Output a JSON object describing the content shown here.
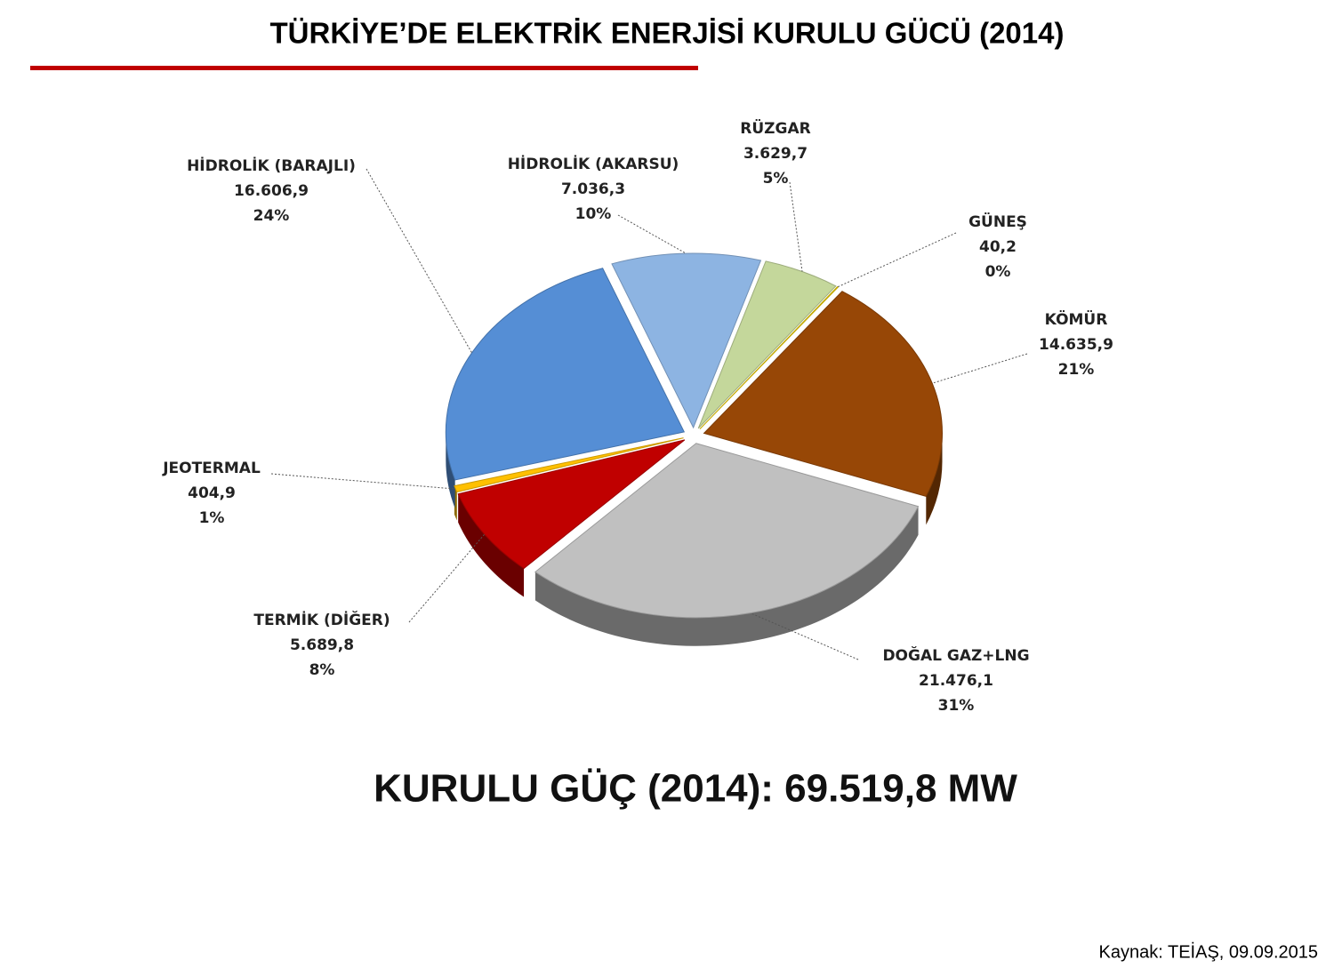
{
  "chart_data": {
    "type": "pie",
    "title": "TÜRKİYE’DE ELEKTRİK ENERJİSİ KURULU GÜCÜ (2014)",
    "categories": [
      "HİDROLİK (AKARSU)",
      "RÜZGAR",
      "GÜNEŞ",
      "KÖMÜR",
      "DOĞAL GAZ+LNG",
      "TERMİK (DİĞER)",
      "JEOTERMAL",
      "HİDROLİK (BARAJLI)"
    ],
    "values": [
      7036.3,
      3629.7,
      40.2,
      14635.9,
      21476.1,
      5689.8,
      404.9,
      16606.9
    ],
    "value_labels": [
      "7.036,3",
      "3.629,7",
      "40,2",
      "14.635,9",
      "21.476,1",
      "5.689,8",
      "404,9",
      "16.606,9"
    ],
    "percents": [
      10,
      5,
      0,
      21,
      31,
      8,
      1,
      24
    ],
    "percent_labels": [
      "10%",
      "5%",
      "0%",
      "21%",
      "31%",
      "8%",
      "1%",
      "24%"
    ],
    "colors": [
      "#8db4e2",
      "#c4d79b",
      "#f2d200",
      "#974706",
      "#c0c0c0",
      "#c00000",
      "#ffc000",
      "#558ed5"
    ],
    "summary": "KURULU GÜÇ (2014): 69.519,8 MW",
    "source": "Kaynak: TEİAŞ, 09.09.2015"
  }
}
